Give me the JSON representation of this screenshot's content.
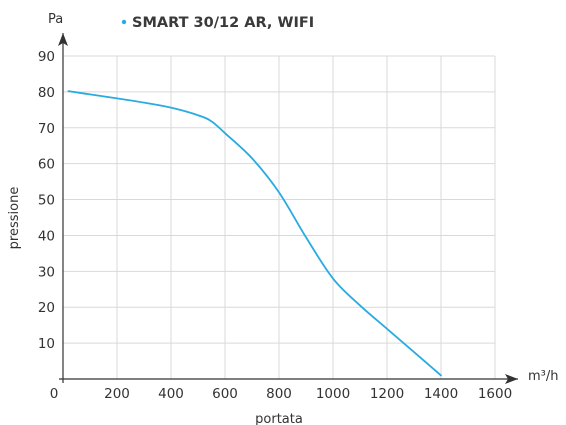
{
  "chart_data": {
    "type": "line",
    "title": "",
    "xlabel": "portata",
    "ylabel": "pressione",
    "x_unit": "m³/h",
    "y_unit": "Pa",
    "xlim": [
      0,
      1600
    ],
    "ylim": [
      0,
      90
    ],
    "x_ticks": [
      0,
      200,
      400,
      600,
      800,
      1000,
      1200,
      1400,
      1600
    ],
    "y_ticks": [
      10,
      20,
      30,
      40,
      50,
      60,
      70,
      80,
      90
    ],
    "grid": true,
    "legend_position": "top",
    "series": [
      {
        "name": "SMART 30/12 AR, WIFI",
        "color": "#29abe2",
        "x": [
          20,
          100,
          200,
          300,
          400,
          500,
          550,
          600,
          700,
          800,
          900,
          1000,
          1100,
          1200,
          1300,
          1400
        ],
        "y": [
          80.2,
          79.3,
          78.2,
          77,
          75.6,
          73.5,
          71.8,
          68.5,
          61.5,
          52,
          39.5,
          28,
          20.5,
          14,
          7.5,
          1
        ]
      }
    ]
  }
}
